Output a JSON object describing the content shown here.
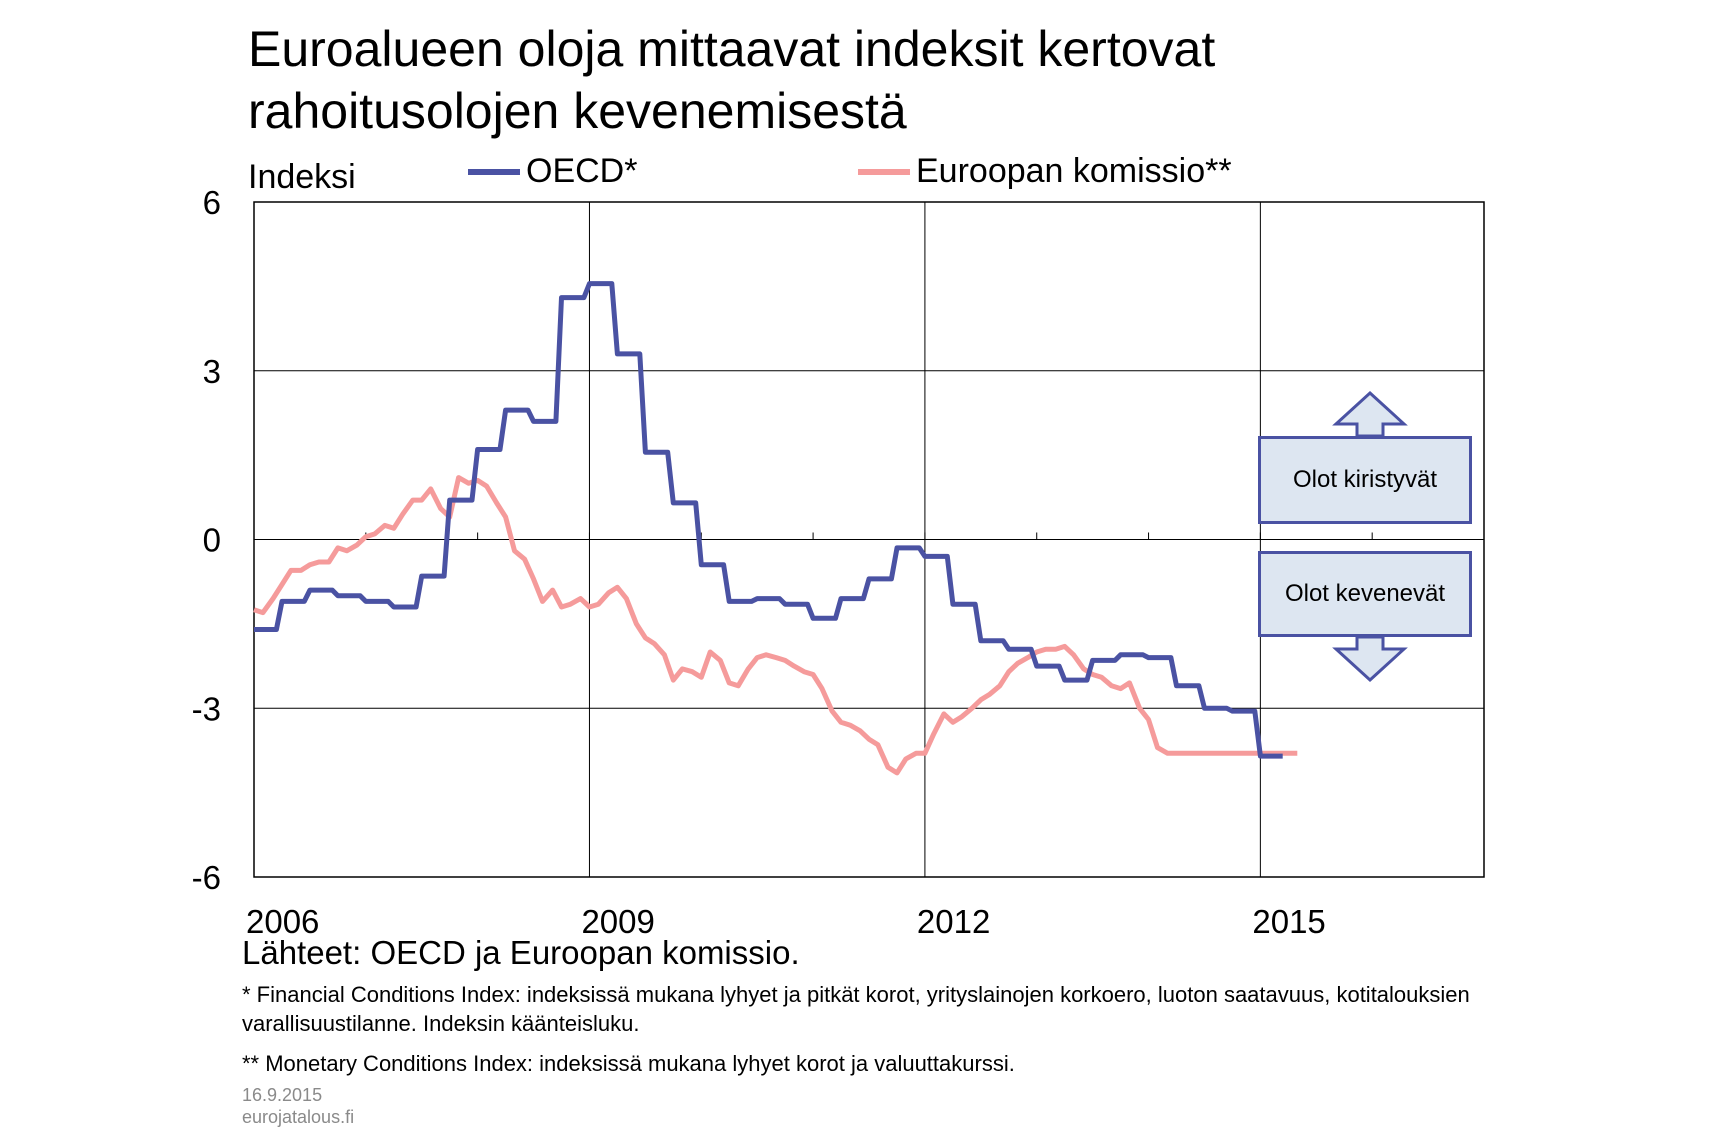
{
  "title_lines": [
    "Euroalueen oloja mittaavat indeksit kertovat",
    "rahoitusolojen kevenemisestä"
  ],
  "y_unit": "Indeksi",
  "legend": [
    {
      "label": "OECD*",
      "color": "#4a52a3"
    },
    {
      "label": "Euroopan komissio**",
      "color": "#f59b9b"
    }
  ],
  "annotations": {
    "up": "Olot kiristyvät",
    "down": "Olot kevenevät"
  },
  "source": "Lähteet: OECD ja Euroopan komissio.",
  "footnotes": [
    "* Financial Conditions Index: indeksissä mukana lyhyet ja pitkät korot, yrityslainojen korkoero, luoton saatavuus, kotitalouksien varallisuustilanne. Indeksin käänteisluku.",
    "** Monetary Conditions Index: indeksissä mukana lyhyet korot ja valuuttakurssi."
  ],
  "date": "16.9.2015",
  "site": "eurojatalous.fi",
  "chart_data": {
    "type": "line",
    "ylim": [
      -6,
      6
    ],
    "yticks": [
      6,
      3,
      0,
      -3,
      -6
    ],
    "ytick_labels": [
      "6",
      "3",
      "0",
      "-3",
      "-6"
    ],
    "xlim": [
      2006,
      2017
    ],
    "xticks": [
      2006,
      2009,
      2012,
      2015
    ],
    "xtick_labels": [
      "2006",
      "2009",
      "2012",
      "2015"
    ],
    "grid": true,
    "series": [
      {
        "name": "OECD*",
        "color": "#4a52a3",
        "x": [
          2006.0,
          2006.2,
          2006.25,
          2006.45,
          2006.5,
          2006.7,
          2006.75,
          2006.95,
          2007.0,
          2007.2,
          2007.25,
          2007.45,
          2007.5,
          2007.7,
          2007.75,
          2007.95,
          2008.0,
          2008.2,
          2008.25,
          2008.45,
          2008.5,
          2008.7,
          2008.75,
          2008.95,
          2009.0,
          2009.2,
          2009.25,
          2009.45,
          2009.5,
          2009.7,
          2009.75,
          2009.95,
          2010.0,
          2010.2,
          2010.25,
          2010.45,
          2010.5,
          2010.7,
          2010.75,
          2010.95,
          2011.0,
          2011.2,
          2011.25,
          2011.45,
          2011.5,
          2011.7,
          2011.75,
          2011.95,
          2012.0,
          2012.2,
          2012.25,
          2012.45,
          2012.5,
          2012.7,
          2012.75,
          2012.95,
          2013.0,
          2013.2,
          2013.25,
          2013.45,
          2013.5,
          2013.7,
          2013.75,
          2013.95,
          2014.0,
          2014.2,
          2014.25,
          2014.45,
          2014.5,
          2014.7,
          2014.75,
          2014.95,
          2015.0,
          2015.2
        ],
        "values": [
          -1.6,
          -1.6,
          -1.1,
          -1.1,
          -0.9,
          -0.9,
          -1.0,
          -1.0,
          -1.1,
          -1.1,
          -1.2,
          -1.2,
          -0.65,
          -0.65,
          0.7,
          0.7,
          1.6,
          1.6,
          2.3,
          2.3,
          2.1,
          2.1,
          4.3,
          4.3,
          4.55,
          4.55,
          3.3,
          3.3,
          1.55,
          1.55,
          0.65,
          0.65,
          -0.45,
          -0.45,
          -1.1,
          -1.1,
          -1.05,
          -1.05,
          -1.15,
          -1.15,
          -1.4,
          -1.4,
          -1.05,
          -1.05,
          -0.7,
          -0.7,
          -0.15,
          -0.15,
          -0.3,
          -0.3,
          -1.15,
          -1.15,
          -1.8,
          -1.8,
          -1.95,
          -1.95,
          -2.25,
          -2.25,
          -2.5,
          -2.5,
          -2.15,
          -2.15,
          -2.05,
          -2.05,
          -2.1,
          -2.1,
          -2.6,
          -2.6,
          -3.0,
          -3.0,
          -3.05,
          -3.05,
          -3.85,
          -3.85
        ]
      },
      {
        "name": "Euroopan komissio**",
        "color": "#f59b9b",
        "x": [
          2006.0,
          2006.08,
          2006.17,
          2006.25,
          2006.33,
          2006.42,
          2006.5,
          2006.58,
          2006.67,
          2006.75,
          2006.83,
          2006.92,
          2007.0,
          2007.08,
          2007.17,
          2007.25,
          2007.33,
          2007.42,
          2007.5,
          2007.58,
          2007.67,
          2007.75,
          2007.83,
          2007.92,
          2008.0,
          2008.08,
          2008.17,
          2008.25,
          2008.33,
          2008.42,
          2008.5,
          2008.58,
          2008.67,
          2008.75,
          2008.83,
          2008.92,
          2009.0,
          2009.08,
          2009.17,
          2009.25,
          2009.33,
          2009.42,
          2009.5,
          2009.58,
          2009.67,
          2009.75,
          2009.83,
          2009.92,
          2010.0,
          2010.08,
          2010.17,
          2010.25,
          2010.33,
          2010.42,
          2010.5,
          2010.58,
          2010.67,
          2010.75,
          2010.83,
          2010.92,
          2011.0,
          2011.08,
          2011.17,
          2011.25,
          2011.33,
          2011.42,
          2011.5,
          2011.58,
          2011.67,
          2011.75,
          2011.83,
          2011.92,
          2012.0,
          2012.08,
          2012.17,
          2012.25,
          2012.33,
          2012.42,
          2012.5,
          2012.58,
          2012.67,
          2012.75,
          2012.83,
          2012.92,
          2013.0,
          2013.08,
          2013.17,
          2013.25,
          2013.33,
          2013.42,
          2013.5,
          2013.58,
          2013.67,
          2013.75,
          2013.83,
          2013.92,
          2014.0,
          2014.08,
          2014.17,
          2014.25,
          2014.33,
          2014.42,
          2014.5,
          2014.58,
          2014.67,
          2014.75,
          2014.83,
          2014.92,
          2015.0,
          2015.08,
          2015.17,
          2015.25,
          2015.33
        ],
        "values": [
          -1.25,
          -1.3,
          -1.05,
          -0.8,
          -0.55,
          -0.55,
          -0.45,
          -0.4,
          -0.4,
          -0.15,
          -0.2,
          -0.1,
          0.05,
          0.1,
          0.25,
          0.2,
          0.45,
          0.7,
          0.7,
          0.9,
          0.55,
          0.4,
          1.1,
          1.0,
          1.05,
          0.95,
          0.65,
          0.4,
          -0.2,
          -0.35,
          -0.7,
          -1.1,
          -0.9,
          -1.2,
          -1.15,
          -1.05,
          -1.2,
          -1.15,
          -0.95,
          -0.85,
          -1.05,
          -1.5,
          -1.75,
          -1.85,
          -2.05,
          -2.5,
          -2.3,
          -2.35,
          -2.45,
          -2.0,
          -2.15,
          -2.55,
          -2.6,
          -2.3,
          -2.1,
          -2.05,
          -2.1,
          -2.15,
          -2.25,
          -2.35,
          -2.4,
          -2.65,
          -3.05,
          -3.25,
          -3.3,
          -3.4,
          -3.55,
          -3.65,
          -4.05,
          -4.15,
          -3.9,
          -3.8,
          -3.8,
          -3.45,
          -3.1,
          -3.25,
          -3.15,
          -3.0,
          -2.85,
          -2.75,
          -2.6,
          -2.35,
          -2.2,
          -2.1,
          -2.0,
          -1.95,
          -1.95,
          -1.9,
          -2.05,
          -2.3,
          -2.4,
          -2.45,
          -2.6,
          -2.65,
          -2.55,
          -3.0,
          -3.2,
          -3.7,
          -3.8,
          -3.8,
          -3.8,
          -3.8,
          -3.8,
          -3.8,
          -3.8,
          -3.8,
          -3.8,
          -3.8,
          -3.8,
          -3.8,
          -3.8,
          -3.8,
          -3.8
        ]
      }
    ]
  }
}
